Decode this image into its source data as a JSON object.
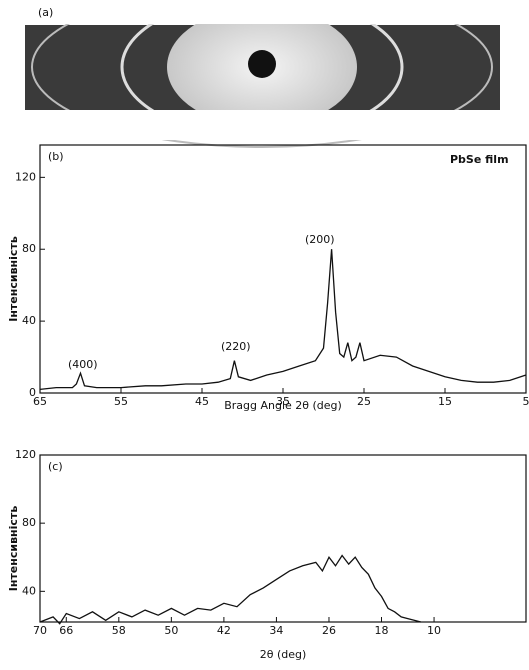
{
  "photo": {
    "label": "(a)"
  },
  "chart_data": [
    {
      "type": "line",
      "panel_label": "(b)",
      "note": "PbSe film",
      "ylabel": "Інтенсивність",
      "xlabel": "Bragg Angle 2θ (deg)",
      "annotations": [
        "(400)",
        "(220)",
        "(200)"
      ],
      "x": [
        65,
        63,
        61,
        60.5,
        60,
        59.5,
        58,
        55,
        52,
        50,
        47,
        45,
        43,
        41.5,
        41,
        40.5,
        39,
        37,
        35,
        33,
        31,
        30,
        29.5,
        29,
        28.5,
        28,
        27.5,
        27,
        26.5,
        26,
        25.5,
        25,
        23,
        21,
        19,
        17,
        15,
        13,
        11,
        9,
        7,
        5
      ],
      "values": [
        2,
        3,
        3,
        5,
        11,
        4,
        3,
        3,
        4,
        4,
        5,
        5,
        6,
        8,
        18,
        9,
        7,
        10,
        12,
        15,
        18,
        25,
        50,
        80,
        45,
        22,
        20,
        28,
        18,
        20,
        28,
        18,
        21,
        20,
        15,
        12,
        9,
        7,
        6,
        6,
        7,
        10
      ],
      "color": "#111111",
      "xlim": [
        65,
        5
      ],
      "xticks": [
        65,
        55,
        45,
        35,
        25,
        15,
        5
      ],
      "ylim": [
        0,
        138
      ],
      "yticks": [
        0,
        40,
        80,
        120
      ]
    },
    {
      "type": "line",
      "panel_label": "(c)",
      "ylabel": "Інтенсивність",
      "xlabel": "2θ (deg)",
      "x": [
        70,
        68,
        67,
        66,
        64,
        62,
        60,
        58,
        56,
        54,
        52,
        50,
        48,
        46,
        44,
        42,
        40,
        38,
        36,
        34,
        32,
        30,
        28,
        27,
        26,
        25,
        24,
        23,
        22,
        21,
        20,
        19,
        18,
        17,
        16,
        15,
        14,
        12
      ],
      "values": [
        22,
        25,
        21,
        27,
        24,
        28,
        23,
        28,
        25,
        29,
        26,
        30,
        26,
        30,
        29,
        33,
        31,
        38,
        42,
        47,
        52,
        55,
        57,
        52,
        60,
        55,
        61,
        56,
        60,
        54,
        50,
        42,
        37,
        30,
        28,
        25,
        24,
        22
      ],
      "color": "#111111",
      "xlim": [
        70,
        -4
      ],
      "xticks": [
        70,
        66,
        58,
        50,
        42,
        34,
        26,
        18,
        10
      ],
      "ylim": [
        22,
        120
      ],
      "yticks": [
        40,
        80,
        120
      ]
    }
  ]
}
